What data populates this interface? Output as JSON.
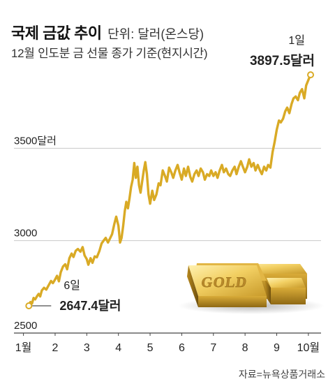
{
  "header": {
    "title": "국제 금값 추이",
    "unit": "단위: 달러(온스당)",
    "subtitle": "12월 인도분 금 선물 종가 기준(현지시간)"
  },
  "source": "자료=뉴욕상품거래소",
  "colors": {
    "line": "#d9aa25",
    "marker_fill": "#ffffff",
    "grid": "#c8c8c8",
    "baseline": "#444444",
    "text": "#222222",
    "gold_light": "#f7df8a",
    "gold_mid": "#dcae38",
    "gold_dark": "#9c7418"
  },
  "illustration": {
    "type": "gold-bars",
    "engraving": "GOLD"
  },
  "chart_data": {
    "type": "line",
    "title": "국제 금값 추이",
    "subtitle": "12월 인도분 금 선물 종가 기준(현지시간)",
    "unit": "단위: 달러(온스당)",
    "xlabel": "",
    "ylabel": "",
    "x_ticks": [
      "1월",
      "2",
      "3",
      "4",
      "5",
      "6",
      "7",
      "8",
      "9",
      "10월"
    ],
    "y_ticks": [
      {
        "value": 2500,
        "label": "2500"
      },
      {
        "value": 3000,
        "label": "3000"
      },
      {
        "value": 3500,
        "label": "3500달러"
      }
    ],
    "ylim": [
      2500,
      4000
    ],
    "xlim": [
      0.7,
      10.4
    ],
    "grid": true,
    "legend": "none",
    "series": [
      {
        "values": [
          [
            1.17,
            2650
          ],
          [
            1.22,
            2668
          ],
          [
            1.27,
            2660
          ],
          [
            1.32,
            2690
          ],
          [
            1.37,
            2682
          ],
          [
            1.43,
            2700
          ],
          [
            1.48,
            2712
          ],
          [
            1.53,
            2698
          ],
          [
            1.58,
            2730
          ],
          [
            1.65,
            2745
          ],
          [
            1.72,
            2735
          ],
          [
            1.8,
            2760
          ],
          [
            1.87,
            2782
          ],
          [
            1.93,
            2770
          ],
          [
            2.0,
            2790
          ],
          [
            2.06,
            2810
          ],
          [
            2.12,
            2780
          ],
          [
            2.18,
            2830
          ],
          [
            2.25,
            2860
          ],
          [
            2.32,
            2872
          ],
          [
            2.38,
            2845
          ],
          [
            2.45,
            2905
          ],
          [
            2.52,
            2930
          ],
          [
            2.58,
            2912
          ],
          [
            2.65,
            2945
          ],
          [
            2.72,
            2955
          ],
          [
            2.8,
            2940
          ],
          [
            2.87,
            2965
          ],
          [
            2.93,
            2920
          ],
          [
            3.0,
            2900
          ],
          [
            3.05,
            2870
          ],
          [
            3.12,
            2905
          ],
          [
            3.18,
            2880
          ],
          [
            3.25,
            2915
          ],
          [
            3.32,
            2910
          ],
          [
            3.4,
            2945
          ],
          [
            3.47,
            2985
          ],
          [
            3.53,
            3000
          ],
          [
            3.6,
            3015
          ],
          [
            3.67,
            2990
          ],
          [
            3.73,
            3010
          ],
          [
            3.8,
            3035
          ],
          [
            3.87,
            3090
          ],
          [
            3.93,
            3130
          ],
          [
            4.0,
            3080
          ],
          [
            4.05,
            2990
          ],
          [
            4.1,
            3015
          ],
          [
            4.15,
            3080
          ],
          [
            4.2,
            3160
          ],
          [
            4.25,
            3210
          ],
          [
            4.3,
            3175
          ],
          [
            4.35,
            3230
          ],
          [
            4.4,
            3290
          ],
          [
            4.45,
            3330
          ],
          [
            4.5,
            3420
          ],
          [
            4.55,
            3340
          ],
          [
            4.6,
            3400
          ],
          [
            4.65,
            3300
          ],
          [
            4.7,
            3260
          ],
          [
            4.75,
            3320
          ],
          [
            4.8,
            3380
          ],
          [
            4.85,
            3425
          ],
          [
            4.9,
            3360
          ],
          [
            4.95,
            3250
          ],
          [
            5.0,
            3200
          ],
          [
            5.07,
            3270
          ],
          [
            5.13,
            3220
          ],
          [
            5.2,
            3250
          ],
          [
            5.27,
            3310
          ],
          [
            5.33,
            3300
          ],
          [
            5.4,
            3380
          ],
          [
            5.47,
            3350
          ],
          [
            5.53,
            3320
          ],
          [
            5.6,
            3395
          ],
          [
            5.67,
            3370
          ],
          [
            5.73,
            3340
          ],
          [
            5.8,
            3380
          ],
          [
            5.87,
            3410
          ],
          [
            5.93,
            3370
          ],
          [
            6.0,
            3330
          ],
          [
            6.07,
            3390
          ],
          [
            6.13,
            3350
          ],
          [
            6.2,
            3400
          ],
          [
            6.27,
            3345
          ],
          [
            6.33,
            3320
          ],
          [
            6.4,
            3360
          ],
          [
            6.47,
            3380
          ],
          [
            6.53,
            3350
          ],
          [
            6.6,
            3390
          ],
          [
            6.67,
            3370
          ],
          [
            6.73,
            3330
          ],
          [
            6.8,
            3360
          ],
          [
            6.87,
            3350
          ],
          [
            6.93,
            3380
          ],
          [
            7.0,
            3350
          ],
          [
            7.07,
            3370
          ],
          [
            7.13,
            3340
          ],
          [
            7.2,
            3380
          ],
          [
            7.27,
            3410
          ],
          [
            7.33,
            3370
          ],
          [
            7.4,
            3390
          ],
          [
            7.47,
            3360
          ],
          [
            7.53,
            3350
          ],
          [
            7.6,
            3380
          ],
          [
            7.67,
            3400
          ],
          [
            7.73,
            3360
          ],
          [
            7.8,
            3400
          ],
          [
            7.87,
            3430
          ],
          [
            7.93,
            3400
          ],
          [
            8.0,
            3370
          ],
          [
            8.07,
            3400
          ],
          [
            8.13,
            3440
          ],
          [
            8.2,
            3400
          ],
          [
            8.27,
            3420
          ],
          [
            8.33,
            3380
          ],
          [
            8.4,
            3410
          ],
          [
            8.47,
            3380
          ],
          [
            8.53,
            3360
          ],
          [
            8.6,
            3400
          ],
          [
            8.67,
            3380
          ],
          [
            8.73,
            3410
          ],
          [
            8.8,
            3395
          ],
          [
            8.87,
            3480
          ],
          [
            8.93,
            3530
          ],
          [
            9.0,
            3600
          ],
          [
            9.07,
            3650
          ],
          [
            9.13,
            3640
          ],
          [
            9.2,
            3660
          ],
          [
            9.27,
            3700
          ],
          [
            9.33,
            3720
          ],
          [
            9.4,
            3690
          ],
          [
            9.47,
            3740
          ],
          [
            9.53,
            3770
          ],
          [
            9.6,
            3780
          ],
          [
            9.67,
            3760
          ],
          [
            9.73,
            3800
          ],
          [
            9.8,
            3820
          ],
          [
            9.87,
            3770
          ],
          [
            9.93,
            3840
          ],
          [
            10.0,
            3870
          ],
          [
            10.07,
            3897.5
          ]
        ]
      }
    ],
    "annotations": [
      {
        "x": 1.17,
        "y": 2647.4,
        "date": "6일",
        "value_label": "2647.4달러"
      },
      {
        "x": 10.07,
        "y": 3897.5,
        "date": "1일",
        "value_label": "3897.5달러"
      }
    ]
  }
}
